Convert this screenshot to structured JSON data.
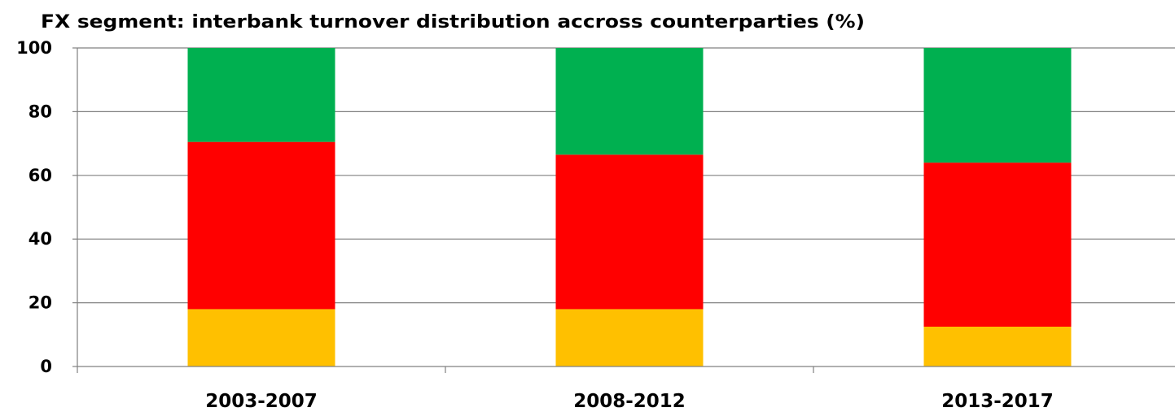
{
  "chart_data": {
    "type": "bar",
    "stacked": true,
    "title": "FX segment: interbank turnover distribution  accross counterparties (%)",
    "xlabel": "",
    "ylabel": "",
    "categories": [
      "2003-2007",
      "2008-2012",
      "2013-2017"
    ],
    "ylim": [
      0,
      100
    ],
    "yticks": [
      0,
      20,
      40,
      60,
      80,
      100
    ],
    "grid": true,
    "legend": "none",
    "series": [
      {
        "color": "#ffc000",
        "values": [
          18,
          18,
          12.5
        ]
      },
      {
        "color": "#ff0000",
        "values": [
          52.5,
          48.5,
          51.5
        ]
      },
      {
        "color": "#00b050",
        "values": [
          29.5,
          33.5,
          36
        ]
      }
    ]
  }
}
